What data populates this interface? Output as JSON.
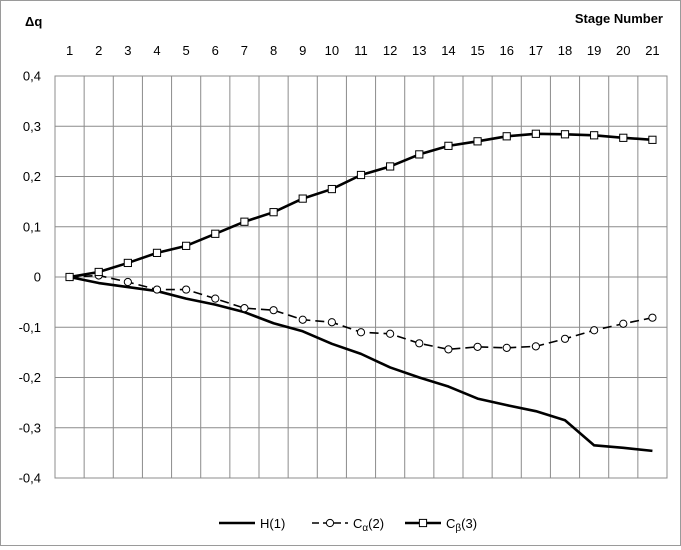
{
  "chart_data": {
    "type": "line",
    "ylabel": "Δq",
    "xlabel": "Stage Number",
    "x": [
      1,
      2,
      3,
      4,
      5,
      6,
      7,
      8,
      9,
      10,
      11,
      12,
      13,
      14,
      15,
      16,
      17,
      18,
      19,
      20,
      21
    ],
    "xticks": [
      "1",
      "2",
      "3",
      "4",
      "5",
      "6",
      "7",
      "8",
      "9",
      "10",
      "11",
      "12",
      "13",
      "14",
      "15",
      "16",
      "17",
      "18",
      "19",
      "20",
      "21"
    ],
    "ylim": [
      -0.4,
      0.4
    ],
    "yticks": [
      "-0,4",
      "-0,3",
      "-0,2",
      "-0,1",
      "0",
      "0,1",
      "0,2",
      "0,3",
      "0,4"
    ],
    "yticks_values": [
      -0.4,
      -0.3,
      -0.2,
      -0.1,
      0,
      0.1,
      0.2,
      0.3,
      0.4
    ],
    "grid": true,
    "x_axis_position": "top",
    "legend": "bottom",
    "series": [
      {
        "name": "H(1)",
        "label_main": "H",
        "label_sub": "",
        "label_suffix": "(1)",
        "style": "solid",
        "marker": "none",
        "values": [
          0,
          -0.012,
          -0.02,
          -0.028,
          -0.043,
          -0.055,
          -0.07,
          -0.092,
          -0.108,
          -0.133,
          -0.153,
          -0.18,
          -0.2,
          -0.218,
          -0.242,
          -0.255,
          -0.267,
          -0.285,
          -0.335,
          -0.34,
          -0.346
        ]
      },
      {
        "name": "Cα(2)",
        "label_main": "C",
        "label_sub": "α",
        "label_suffix": "(2)",
        "style": "dashed",
        "marker": "circle",
        "values": [
          0,
          0.003,
          -0.01,
          -0.025,
          -0.025,
          -0.043,
          -0.062,
          -0.066,
          -0.085,
          -0.09,
          -0.11,
          -0.113,
          -0.132,
          -0.144,
          -0.139,
          -0.141,
          -0.138,
          -0.123,
          -0.106,
          -0.093,
          -0.081
        ]
      },
      {
        "name": "Cβ(3)",
        "label_main": "C",
        "label_sub": "β",
        "label_suffix": "(3)",
        "style": "solid",
        "marker": "square",
        "values": [
          0,
          0.01,
          0.028,
          0.048,
          0.062,
          0.086,
          0.11,
          0.129,
          0.156,
          0.175,
          0.203,
          0.22,
          0.244,
          0.261,
          0.27,
          0.28,
          0.285,
          0.284,
          0.282,
          0.277,
          0.273
        ]
      }
    ],
    "colors": {
      "line": "#000000",
      "grid": "#8c8c8c",
      "marker_fill": "#ffffff"
    }
  }
}
